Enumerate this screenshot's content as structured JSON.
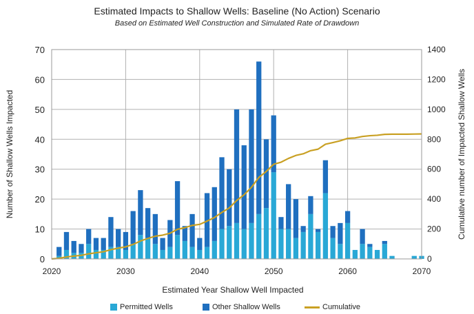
{
  "chart_data": {
    "type": "bar",
    "title": "Estimated Impacts to Shallow Wells:  Baseline (No Action) Scenario",
    "subtitle": "Based on Estimated Well Construction and Simulated Rate of Drawdown",
    "xlabel": "Estimated Year Shallow Well Impacted",
    "ylabel": "Number of Shallow Wells Impacted",
    "y2label": "Cumulative number of Impacted Shallow Wells",
    "xlim": [
      2020,
      2070
    ],
    "ylim": [
      0,
      70
    ],
    "y2lim": [
      0,
      1400
    ],
    "x_ticks": [
      "2020",
      "2030",
      "2040",
      "2050",
      "2060",
      "2070"
    ],
    "y_ticks": [
      "0",
      "10",
      "20",
      "30",
      "40",
      "50",
      "60",
      "70"
    ],
    "y2_ticks": [
      "0",
      "200",
      "400",
      "600",
      "800",
      "1000",
      "1200",
      "1400"
    ],
    "stacked": true,
    "grid": true,
    "legend_position": "bottom",
    "years": [
      2021,
      2022,
      2023,
      2024,
      2025,
      2026,
      2027,
      2028,
      2029,
      2030,
      2031,
      2032,
      2033,
      2034,
      2035,
      2036,
      2037,
      2038,
      2039,
      2040,
      2041,
      2042,
      2043,
      2044,
      2045,
      2046,
      2047,
      2048,
      2049,
      2050,
      2051,
      2052,
      2053,
      2054,
      2055,
      2056,
      2057,
      2058,
      2059,
      2060,
      2061,
      2062,
      2063,
      2064,
      2065,
      2066,
      2067,
      2068,
      2069,
      2070
    ],
    "series": [
      {
        "name": "Permitted Wells",
        "color": "#29a8d6",
        "values": [
          1,
          3,
          2,
          2,
          5,
          3,
          3,
          4,
          4,
          3,
          5,
          8,
          7,
          5,
          3,
          4,
          8,
          6,
          4,
          3,
          4,
          6,
          10,
          11,
          12,
          10,
          12,
          15,
          17,
          29,
          10,
          10,
          7,
          9,
          15,
          9,
          22,
          7,
          5,
          12,
          3,
          5,
          4,
          3,
          5,
          1,
          0,
          0,
          1,
          1
        ]
      },
      {
        "name": "Other Shallow Wells",
        "color": "#1f6fbf",
        "values": [
          3,
          6,
          4,
          3,
          5,
          4,
          4,
          10,
          6,
          6,
          11,
          15,
          10,
          10,
          4,
          9,
          18,
          5,
          11,
          4,
          18,
          18,
          24,
          19,
          38,
          28,
          38,
          51,
          23,
          19,
          4,
          15,
          13,
          2,
          6,
          1,
          11,
          4,
          7,
          4,
          0,
          5,
          1,
          0,
          1,
          0,
          0,
          0,
          0,
          0
        ]
      },
      {
        "name": "Cumulative",
        "color": "#c9a023",
        "type": "line",
        "values": [
          4,
          13,
          19,
          24,
          34,
          41,
          48,
          62,
          72,
          81,
          97,
          120,
          137,
          152,
          159,
          172,
          198,
          209,
          224,
          231,
          253,
          277,
          311,
          341,
          391,
          429,
          479,
          545,
          585,
          633,
          647,
          672,
          692,
          703,
          724,
          734,
          767,
          778,
          790,
          806,
          809,
          819,
          824,
          827,
          833,
          834,
          834,
          834,
          835,
          836
        ]
      }
    ]
  },
  "legend": {
    "permitted": "Permitted Wells",
    "other": "Other Shallow Wells",
    "cumulative": "Cumulative"
  },
  "colors": {
    "permitted": "#29a8d6",
    "other": "#1f6fbf",
    "cumulative": "#c9a023",
    "grid": "#b0b0b0"
  }
}
